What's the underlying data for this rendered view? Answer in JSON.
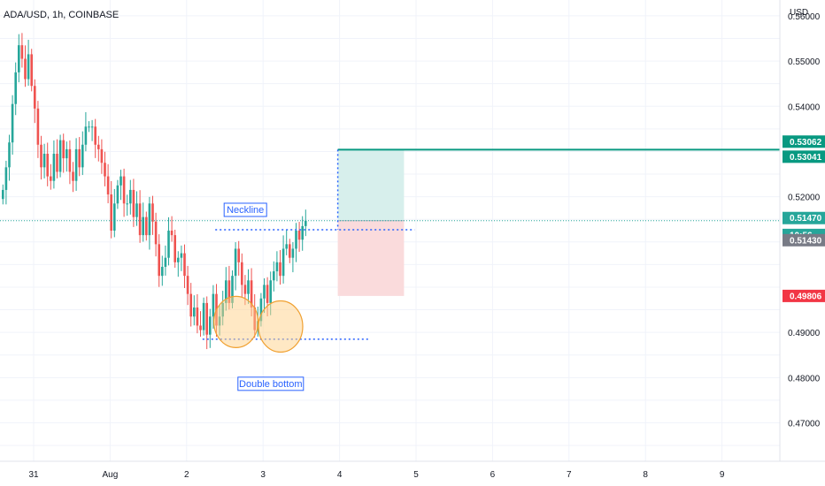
{
  "header": {
    "symbol_title": "ADA/USD, 1h, COINBASE"
  },
  "chart_data": {
    "type": "candlestick",
    "title": "ADA/USD, 1h, COINBASE",
    "currency_label": "USD",
    "ylim": [
      0.4615,
      0.5635
    ],
    "y_ticks": [
      {
        "label": "0.56000",
        "value": 0.56
      },
      {
        "label": "0.55000",
        "value": 0.55
      },
      {
        "label": "0.54000",
        "value": 0.54
      },
      {
        "label": "0.52000",
        "value": 0.52
      },
      {
        "label": "0.49000",
        "value": 0.49
      },
      {
        "label": "0.48000",
        "value": 0.48
      },
      {
        "label": "0.47000",
        "value": 0.47
      }
    ],
    "x_ticks": [
      {
        "label": "31",
        "index": 0
      },
      {
        "label": "Aug",
        "index": 24
      },
      {
        "label": "2",
        "index": 48
      },
      {
        "label": "3",
        "index": 72
      },
      {
        "label": "4",
        "index": 96
      },
      {
        "label": "5",
        "index": 120
      },
      {
        "label": "6",
        "index": 144
      },
      {
        "label": "7",
        "index": 168
      },
      {
        "label": "8",
        "index": 192
      },
      {
        "label": "9",
        "index": 216
      }
    ],
    "candle_close": [
      0.5215,
      0.5265,
      0.532,
      0.5405,
      0.5475,
      0.5535,
      0.5505,
      0.546,
      0.5515,
      0.5445,
      0.5395,
      0.5315,
      0.5265,
      0.5295,
      0.5245,
      0.5235,
      0.5295,
      0.5255,
      0.5325,
      0.5285,
      0.5305,
      0.5255,
      0.5235,
      0.5305,
      0.5265,
      0.5315,
      0.5355,
      0.5355,
      0.5355,
      0.5315,
      0.5305,
      0.5275,
      0.5245,
      0.5205,
      0.5125,
      0.5185,
      0.5225,
      0.5245,
      0.5185,
      0.5185,
      0.5215,
      0.5155,
      0.5185,
      0.5115,
      0.5155,
      0.5115,
      0.5185,
      0.5145,
      0.5095,
      0.5025,
      0.5045,
      0.5065,
      0.5125,
      0.5115,
      0.5055,
      0.5065,
      0.5075,
      0.5025,
      0.4985,
      0.4935,
      0.4955,
      0.4915,
      0.4905,
      0.4965,
      0.4895,
      0.4935,
      0.4985,
      0.4915,
      0.4935,
      0.4965,
      0.5015,
      0.4965,
      0.5025,
      0.5085,
      0.5055,
      0.5005,
      0.4985,
      0.5015,
      0.4955,
      0.4905,
      0.4925,
      0.4975,
      0.5005,
      0.4965,
      0.5015,
      0.5035,
      0.5055,
      0.5025,
      0.5085,
      0.5095,
      0.5065,
      0.5085,
      0.5125,
      0.5105,
      0.5135,
      0.5147
    ],
    "last_candle_index": 95,
    "price_labels": [
      {
        "label": "0.53062",
        "value": 0.53062,
        "color": "#089981"
      },
      {
        "label": "0.53041",
        "value": 0.53041,
        "color": "#089981"
      },
      {
        "label": "0.51470",
        "value": 0.5147,
        "color": "#26a69a"
      },
      {
        "label": "10:56",
        "value": 0.5135,
        "color": "#26a69a"
      },
      {
        "label": "0.51430",
        "value": 0.5143,
        "color": "#787b86"
      },
      {
        "label": "0.49806",
        "value": 0.49806,
        "color": "#f23645"
      }
    ],
    "trade_setup": {
      "entry": 0.5147,
      "target": 0.53041,
      "stop": 0.49806,
      "start_index": 96,
      "end_index": 109
    },
    "neckline": {
      "value": 0.5127,
      "start_index": 57,
      "end_index": 114,
      "label": "Neckline"
    },
    "support": {
      "value": 0.4885,
      "start_index": 53,
      "end_index": 103,
      "label": "Double bottom"
    },
    "bottoms": [
      {
        "center_index": 63.5,
        "value": 0.4923
      },
      {
        "center_index": 77.5,
        "value": 0.4913
      }
    ],
    "colors": {
      "up": "#26a69a",
      "down": "#ef5350",
      "grid": "#f0f3fa",
      "accent": "#2962ff",
      "profit_zone": "#d7efec",
      "loss_zone": "#fadbdc",
      "target_line": "#089981",
      "ellipse": "#ffd18a"
    }
  }
}
